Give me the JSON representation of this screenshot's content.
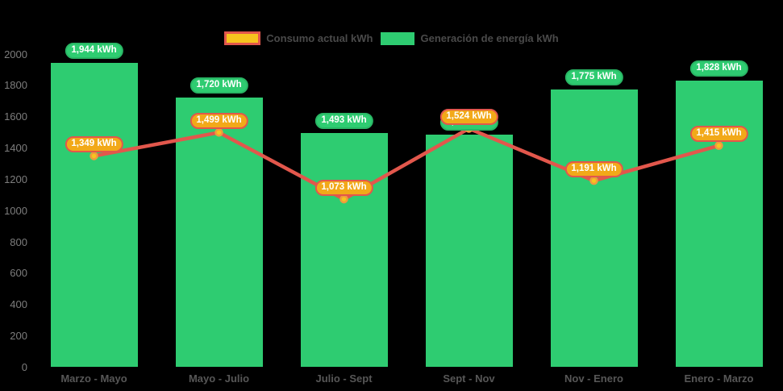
{
  "chart_data": {
    "type": "combo-bar-line",
    "title": "",
    "xlabel": "",
    "ylabel": "",
    "categories": [
      "Marzo - Mayo",
      "Mayo - Julio",
      "Julio - Sept",
      "Sept - Nov",
      "Nov - Enero",
      "Enero - Marzo"
    ],
    "series": [
      {
        "name": "Consumo actual kWh",
        "type": "line",
        "values": [
          1349,
          1499,
          1073,
          1524,
          1191,
          1415
        ],
        "point_labels": [
          "1,349 kWh",
          "1,499 kWh",
          "1,073 kWh",
          "1,524 kWh",
          "1,191 kWh",
          "1,415 kWh"
        ],
        "line_color": "#e2574c",
        "marker_fill": "#f6c41e",
        "marker_border": "#ee9c3d",
        "label_fill": "#f2a919",
        "label_border": "#e2574c"
      },
      {
        "name": "Generación de energía kWh",
        "type": "bar",
        "values": [
          1944,
          1720,
          1493,
          1485,
          1775,
          1828
        ],
        "point_labels": [
          "1,944 kWh",
          "1,720 kWh",
          "1,493 kWh",
          "1,485 kWh",
          "1,775 kWh",
          "1,828 kWh"
        ],
        "bar_color": "#2ecc71",
        "label_fill": "#2ecc71",
        "label_border": "#29b765"
      }
    ],
    "ylim": [
      0,
      2000
    ],
    "ytick_labels": [
      "0",
      "200",
      "400",
      "600",
      "800",
      "1000",
      "1200",
      "1400",
      "1600",
      "1800",
      "2000"
    ],
    "grid": false,
    "legend_position": "top-center",
    "background": "#000000",
    "axis_text_color": "#7d7d7d",
    "category_text_color": "#575757",
    "legend_text_color": "#4a4a4a"
  }
}
